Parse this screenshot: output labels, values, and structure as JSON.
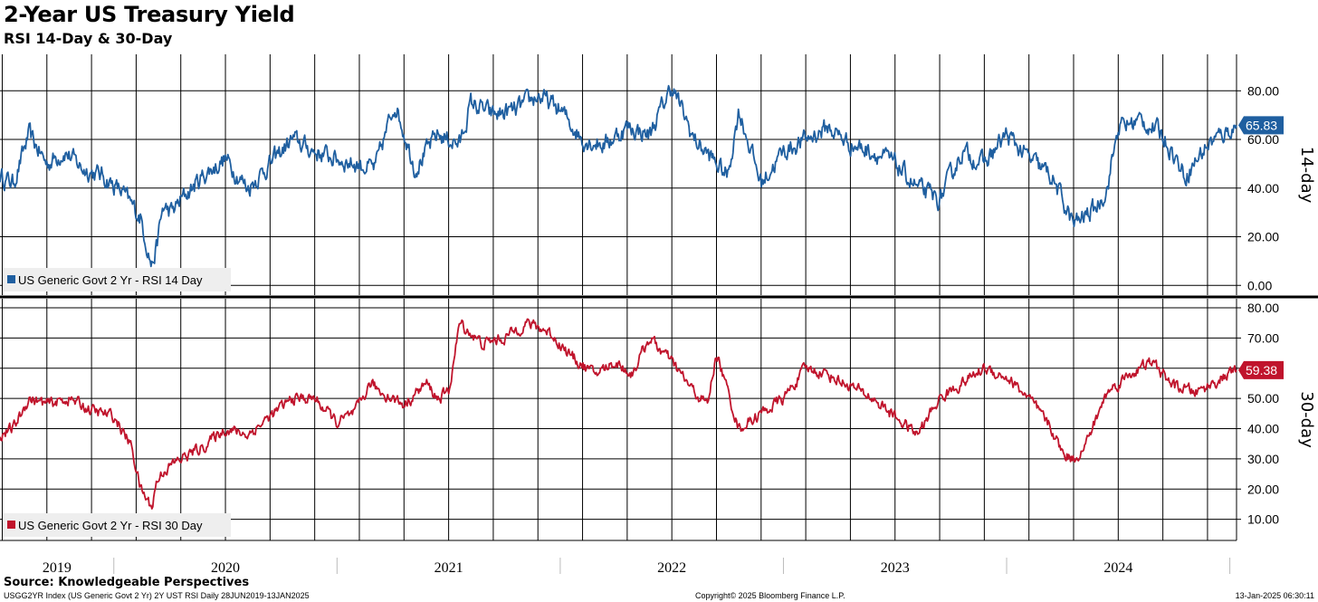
{
  "title": "2-Year US Treasury Yield",
  "subtitle": "RSI 14-Day & 30-Day",
  "source": "Source: Knowledgeable Perspectives",
  "footer": {
    "left": "USGG2YR Index (US Generic Govt 2 Yr) 2Y UST RSI  Daily 28JUN2019-13JAN2025",
    "center": "Copyright© 2025 Bloomberg Finance L.P.",
    "right": "13-Jan-2025 06:30:11"
  },
  "colors": {
    "blue": "#1f5fa0",
    "red": "#c0142c",
    "grid": "#000000",
    "legend_bg": "#eeeeee"
  },
  "chart_data": [
    {
      "type": "line",
      "panel": "top",
      "axis_label": "14-day",
      "ylim": [
        -4,
        95
      ],
      "yticks": [
        "0.00",
        "20.00",
        "40.00",
        "60.00",
        "80.00"
      ],
      "ytick_values": [
        0,
        20,
        40,
        60,
        80
      ],
      "legend": "US Generic Govt 2 Yr - RSI 14 Day",
      "last_value": 65.83,
      "last_value_label": "65.83",
      "color": "#1f5fa0",
      "noise": 6.5,
      "series": {
        "name": "US Generic Govt 2 Yr - RSI 14 Day",
        "x": [
          2019.49,
          2019.55,
          2019.62,
          2019.7,
          2019.78,
          2019.86,
          2019.95,
          2020.04,
          2020.12,
          2020.17,
          2020.19,
          2020.22,
          2020.26,
          2020.3,
          2020.4,
          2020.5,
          2020.6,
          2020.7,
          2020.8,
          2020.9,
          2021.0,
          2021.08,
          2021.17,
          2021.26,
          2021.35,
          2021.45,
          2021.55,
          2021.6,
          2021.7,
          2021.8,
          2021.9,
          2022.0,
          2022.1,
          2022.2,
          2022.3,
          2022.4,
          2022.5,
          2022.6,
          2022.7,
          2022.75,
          2022.8,
          2022.9,
          2023.0,
          2023.1,
          2023.2,
          2023.3,
          2023.4,
          2023.5,
          2023.6,
          2023.7,
          2023.8,
          2023.9,
          2024.0,
          2024.1,
          2024.2,
          2024.25,
          2024.3,
          2024.4,
          2024.45,
          2024.5,
          2024.6,
          2024.7,
          2024.8,
          2024.9,
          2025.03
        ],
        "values": [
          45,
          42,
          62,
          50,
          55,
          48,
          45,
          38,
          28,
          8,
          15,
          32,
          30,
          35,
          45,
          52,
          40,
          50,
          60,
          55,
          52,
          50,
          48,
          75,
          48,
          62,
          58,
          75,
          70,
          72,
          78,
          72,
          60,
          58,
          65,
          62,
          82,
          60,
          50,
          45,
          72,
          42,
          55,
          60,
          65,
          58,
          55,
          50,
          40,
          35,
          55,
          50,
          62,
          52,
          45,
          35,
          25,
          32,
          40,
          65,
          68,
          62,
          45,
          58,
          65.83
        ]
      },
      "x_range": [
        2019.49,
        2025.03
      ]
    },
    {
      "type": "line",
      "panel": "bottom",
      "axis_label": "30-day",
      "ylim": [
        3,
        83
      ],
      "yticks": [
        "10.00",
        "20.00",
        "30.00",
        "40.00",
        "50.00",
        "60.00",
        "70.00",
        "80.00"
      ],
      "ytick_values": [
        10,
        20,
        30,
        40,
        50,
        60,
        70,
        80
      ],
      "legend": "US Generic Govt 2 Yr - RSI 30 Day",
      "last_value": 59.38,
      "last_value_label": "59.38",
      "color": "#c0142c",
      "noise": 3.2,
      "series": {
        "name": "US Generic Govt 2 Yr - RSI 30 Day",
        "x": [
          2019.49,
          2019.55,
          2019.62,
          2019.7,
          2019.8,
          2019.9,
          2020.0,
          2020.08,
          2020.12,
          2020.17,
          2020.19,
          2020.22,
          2020.3,
          2020.4,
          2020.5,
          2020.6,
          2020.7,
          2020.8,
          2020.9,
          2021.0,
          2021.08,
          2021.15,
          2021.2,
          2021.3,
          2021.4,
          2021.45,
          2021.5,
          2021.55,
          2021.65,
          2021.75,
          2021.85,
          2021.95,
          2022.05,
          2022.15,
          2022.25,
          2022.32,
          2022.4,
          2022.5,
          2022.6,
          2022.66,
          2022.7,
          2022.8,
          2022.9,
          2023.0,
          2023.1,
          2023.2,
          2023.3,
          2023.4,
          2023.5,
          2023.6,
          2023.7,
          2023.8,
          2023.9,
          2024.0,
          2024.1,
          2024.2,
          2024.25,
          2024.3,
          2024.35,
          2024.45,
          2024.55,
          2024.65,
          2024.75,
          2024.85,
          2024.95,
          2025.03
        ],
        "values": [
          38,
          40,
          50,
          48,
          50,
          46,
          44,
          34,
          20,
          14,
          22,
          26,
          30,
          34,
          40,
          38,
          44,
          50,
          50,
          42,
          45,
          55,
          52,
          48,
          55,
          50,
          52,
          75,
          68,
          70,
          75,
          72,
          64,
          58,
          62,
          58,
          70,
          62,
          52,
          48,
          65,
          40,
          45,
          50,
          60,
          58,
          54,
          50,
          44,
          38,
          50,
          55,
          60,
          57,
          50,
          40,
          32,
          30,
          34,
          52,
          58,
          62,
          54,
          52,
          56,
          59.38
        ]
      },
      "x_range": [
        2019.49,
        2025.03
      ]
    }
  ],
  "x_axis": {
    "year_labels": [
      "2019",
      "2020",
      "2021",
      "2022",
      "2023",
      "2024"
    ],
    "year_centers": [
      2019.745,
      2020.5,
      2021.5,
      2022.5,
      2023.5,
      2024.5
    ],
    "year_boundaries": [
      2020,
      2021,
      2022,
      2023,
      2024,
      2025
    ]
  }
}
